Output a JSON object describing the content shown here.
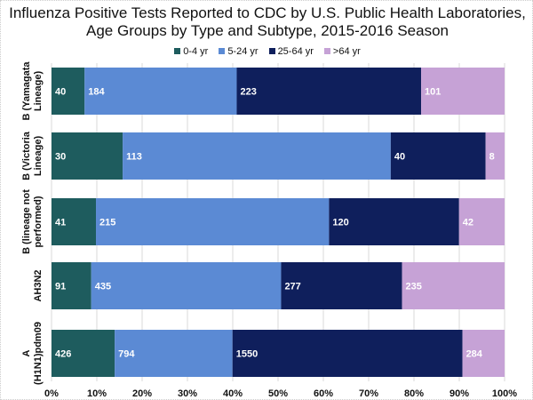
{
  "chart_data": {
    "type": "bar",
    "orientation": "horizontal",
    "stacked": "percent",
    "title": "Influenza Positive Tests Reported to CDC by U.S. Public Health Laboratories, Age Groups by Type and Subtype, 2015-2016 Season",
    "categories": [
      "B (Yamagata Lineage)",
      "B (Victoria Lineage)",
      "B (lineage not performed)",
      "AH3N2",
      "A (H1N1)pdm09"
    ],
    "series": [
      {
        "name": "0-4 yr",
        "color": "#1e5c5e",
        "values": [
          40,
          30,
          41,
          91,
          426
        ]
      },
      {
        "name": "5-24 yr",
        "color": "#5b8ad4",
        "values": [
          184,
          113,
          215,
          435,
          794
        ]
      },
      {
        "name": "25-64 yr",
        "color": "#0f1f5c",
        "values": [
          223,
          40,
          120,
          277,
          1550
        ]
      },
      {
        "name": ">64 yr",
        "color": "#c6a2d6",
        "values": [
          101,
          8,
          42,
          235,
          284
        ]
      }
    ],
    "xlim": [
      0,
      100
    ],
    "xticks": [
      "0%",
      "10%",
      "20%",
      "30%",
      "40%",
      "50%",
      "60%",
      "70%",
      "80%",
      "90%",
      "100%"
    ],
    "grid": true,
    "legend": "top"
  }
}
